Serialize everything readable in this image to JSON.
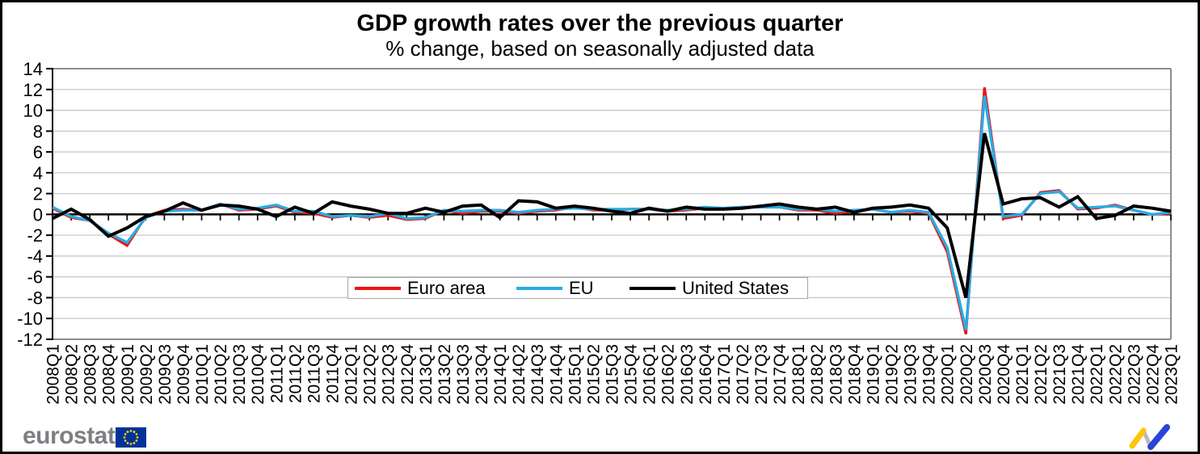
{
  "header": {
    "title": "GDP growth rates over the previous quarter",
    "subtitle": "% change, based on seasonally adjusted data"
  },
  "chart_data": {
    "type": "line",
    "title": "GDP growth rates over the previous quarter",
    "subtitle": "% change, based on seasonally adjusted data",
    "xlabel": "",
    "ylabel": "",
    "ylim": [
      -12,
      14
    ],
    "ytick_step": 2,
    "grid": true,
    "legend_position": "inside-bottom-center",
    "categories": [
      "2008Q1",
      "2008Q2",
      "2008Q3",
      "2008Q4",
      "2009Q1",
      "2009Q2",
      "2009Q3",
      "2009Q4",
      "2010Q1",
      "2010Q2",
      "2010Q3",
      "2010Q4",
      "2011Q1",
      "2011Q2",
      "2011Q3",
      "2011Q4",
      "2012Q1",
      "2012Q2",
      "2012Q3",
      "2012Q4",
      "2013Q1",
      "2013Q2",
      "2013Q3",
      "2013Q4",
      "2014Q1",
      "2014Q2",
      "2014Q3",
      "2014Q4",
      "2015Q1",
      "2015Q2",
      "2015Q3",
      "2015Q4",
      "2016Q1",
      "2016Q2",
      "2016Q3",
      "2016Q4",
      "2017Q1",
      "2017Q2",
      "2017Q3",
      "2017Q4",
      "2018Q1",
      "2018Q2",
      "2018Q3",
      "2018Q4",
      "2019Q1",
      "2019Q2",
      "2019Q3",
      "2019Q4",
      "2020Q1",
      "2020Q2",
      "2020Q3",
      "2020Q4",
      "2021Q1",
      "2021Q2",
      "2021Q3",
      "2021Q4",
      "2022Q1",
      "2022Q2",
      "2022Q3",
      "2022Q4",
      "2023Q1"
    ],
    "series": [
      {
        "name": "Euro area",
        "color": "#ee1111",
        "stroke_width": 3.2,
        "values": [
          0.6,
          -0.3,
          -0.6,
          -1.9,
          -3.0,
          -0.2,
          0.4,
          0.5,
          0.4,
          1.0,
          0.4,
          0.5,
          0.8,
          0.2,
          0.1,
          -0.3,
          -0.1,
          -0.3,
          -0.1,
          -0.5,
          -0.4,
          0.4,
          0.1,
          0.3,
          0.3,
          0.1,
          0.3,
          0.4,
          0.7,
          0.4,
          0.4,
          0.5,
          0.5,
          0.3,
          0.4,
          0.6,
          0.6,
          0.7,
          0.7,
          0.7,
          0.4,
          0.4,
          0.1,
          0.3,
          0.5,
          0.2,
          0.3,
          0.1,
          -3.6,
          -11.5,
          12.2,
          -0.4,
          -0.1,
          2.1,
          2.3,
          0.5,
          0.6,
          0.9,
          0.4,
          0.0,
          0.1
        ]
      },
      {
        "name": "EU",
        "color": "#29abe2",
        "stroke_width": 3.4,
        "values": [
          0.7,
          -0.2,
          -0.6,
          -1.8,
          -2.7,
          -0.3,
          0.3,
          0.4,
          0.4,
          1.0,
          0.5,
          0.6,
          0.9,
          0.3,
          0.3,
          -0.2,
          -0.1,
          -0.2,
          0.1,
          -0.4,
          -0.3,
          0.4,
          0.3,
          0.4,
          0.4,
          0.2,
          0.4,
          0.5,
          0.6,
          0.5,
          0.5,
          0.5,
          0.5,
          0.4,
          0.5,
          0.7,
          0.6,
          0.7,
          0.7,
          0.7,
          0.5,
          0.5,
          0.3,
          0.4,
          0.5,
          0.2,
          0.4,
          0.2,
          -3.2,
          -11.1,
          11.4,
          -0.2,
          0.0,
          2.0,
          2.2,
          0.6,
          0.7,
          0.8,
          0.4,
          0.0,
          0.2
        ]
      },
      {
        "name": "United States",
        "color": "#000000",
        "stroke_width": 4,
        "values": [
          -0.4,
          0.5,
          -0.5,
          -2.1,
          -1.3,
          -0.2,
          0.3,
          1.1,
          0.4,
          0.9,
          0.8,
          0.5,
          -0.2,
          0.7,
          0.1,
          1.2,
          0.8,
          0.5,
          0.1,
          0.1,
          0.6,
          0.2,
          0.8,
          0.9,
          -0.3,
          1.3,
          1.2,
          0.6,
          0.8,
          0.6,
          0.3,
          0.1,
          0.6,
          0.3,
          0.7,
          0.5,
          0.5,
          0.6,
          0.8,
          1.0,
          0.7,
          0.5,
          0.7,
          0.2,
          0.6,
          0.7,
          0.9,
          0.6,
          -1.3,
          -8.0,
          7.8,
          1.0,
          1.5,
          1.6,
          0.7,
          1.7,
          -0.4,
          -0.1,
          0.8,
          0.6,
          0.3
        ]
      }
    ]
  },
  "footer": {
    "brand": "eurostat"
  },
  "colors": {
    "grid": "#c9c9c9",
    "plot_border": "#8c8c8c",
    "axis": "#000000",
    "legend_border": "#a6a6a6",
    "flag_blue": "#003399",
    "flag_stars": "#ffcc00",
    "brand_gray": "#7d7f83",
    "logo_yellow": "#fdc608",
    "logo_gray": "#b9b9c2",
    "logo_blue": "#2a44d8"
  }
}
